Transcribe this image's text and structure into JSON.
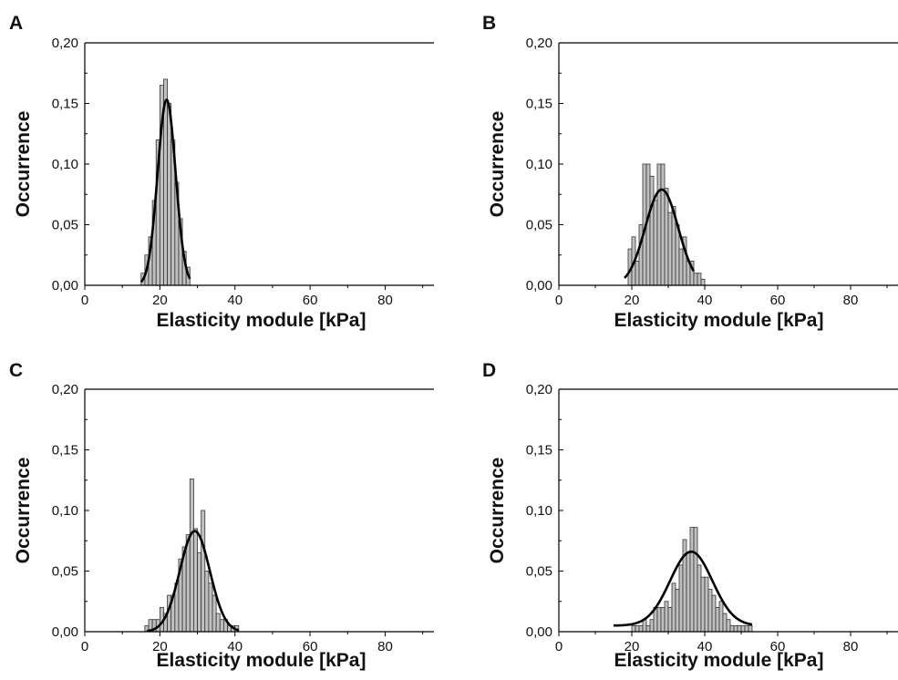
{
  "chart_data": [
    {
      "panel": "A",
      "type": "bar",
      "xlabel": "Elasticity module [kPa]",
      "ylabel": "Occurrence",
      "xlim": [
        0,
        93
      ],
      "ylim": [
        0,
        0.2
      ],
      "xticks": [
        {
          "v": 0,
          "t": "0"
        },
        {
          "v": 20,
          "t": "20"
        },
        {
          "v": 40,
          "t": "40"
        },
        {
          "v": 60,
          "t": "60"
        },
        {
          "v": 80,
          "t": "80"
        }
      ],
      "yticks": [
        {
          "v": 0,
          "t": "0,00"
        },
        {
          "v": 0.05,
          "t": "0,05"
        },
        {
          "v": 0.1,
          "t": "0,10"
        },
        {
          "v": 0.15,
          "t": "0,15"
        },
        {
          "v": 0.2,
          "t": "0,20"
        }
      ],
      "bin_width": 1,
      "bins": [
        {
          "x": 15.5,
          "y": 0.01
        },
        {
          "x": 16.5,
          "y": 0.025
        },
        {
          "x": 17.5,
          "y": 0.04
        },
        {
          "x": 18.5,
          "y": 0.07
        },
        {
          "x": 19.5,
          "y": 0.12
        },
        {
          "x": 20.5,
          "y": 0.165
        },
        {
          "x": 21.5,
          "y": 0.17
        },
        {
          "x": 22.5,
          "y": 0.15
        },
        {
          "x": 23.5,
          "y": 0.12
        },
        {
          "x": 24.5,
          "y": 0.085
        },
        {
          "x": 25.5,
          "y": 0.055
        },
        {
          "x": 26.5,
          "y": 0.028
        },
        {
          "x": 27.5,
          "y": 0.015
        }
      ],
      "fit": {
        "type": "gaussian",
        "mu": 21.8,
        "sigma": 2.4,
        "amp": 0.153,
        "x_range": [
          15,
          28
        ]
      }
    },
    {
      "panel": "B",
      "type": "bar",
      "xlabel": "Elasticity module [kPa]",
      "ylabel": "Occurrence",
      "xlim": [
        0,
        93
      ],
      "ylim": [
        0,
        0.2
      ],
      "xticks": [
        {
          "v": 0,
          "t": "0"
        },
        {
          "v": 20,
          "t": "20"
        },
        {
          "v": 40,
          "t": "40"
        },
        {
          "v": 60,
          "t": "60"
        },
        {
          "v": 80,
          "t": "80"
        }
      ],
      "yticks": [
        {
          "v": 0,
          "t": "0,00"
        },
        {
          "v": 0.05,
          "t": "0,05"
        },
        {
          "v": 0.1,
          "t": "0,10"
        },
        {
          "v": 0.15,
          "t": "0,15"
        },
        {
          "v": 0.2,
          "t": "0,20"
        }
      ],
      "bin_width": 1,
      "bins": [
        {
          "x": 19.5,
          "y": 0.03
        },
        {
          "x": 20.5,
          "y": 0.04
        },
        {
          "x": 21.5,
          "y": 0.02
        },
        {
          "x": 22.5,
          "y": 0.05
        },
        {
          "x": 23.5,
          "y": 0.1
        },
        {
          "x": 24.5,
          "y": 0.1
        },
        {
          "x": 25.5,
          "y": 0.09
        },
        {
          "x": 26.5,
          "y": 0.07
        },
        {
          "x": 27.5,
          "y": 0.1
        },
        {
          "x": 28.5,
          "y": 0.1
        },
        {
          "x": 29.5,
          "y": 0.08
        },
        {
          "x": 30.5,
          "y": 0.06
        },
        {
          "x": 31.5,
          "y": 0.065
        },
        {
          "x": 32.5,
          "y": 0.05
        },
        {
          "x": 33.5,
          "y": 0.03
        },
        {
          "x": 34.5,
          "y": 0.04
        },
        {
          "x": 35.5,
          "y": 0.02
        },
        {
          "x": 36.5,
          "y": 0.02
        },
        {
          "x": 37.5,
          "y": 0.01
        },
        {
          "x": 38.5,
          "y": 0.01
        },
        {
          "x": 39.5,
          "y": 0.005
        }
      ],
      "fit": {
        "type": "gaussian",
        "mu": 28.2,
        "sigma": 4.5,
        "amp": 0.079,
        "x_range": [
          18,
          37
        ]
      }
    },
    {
      "panel": "C",
      "type": "bar",
      "xlabel": "Elasticity module [kPa]",
      "ylabel": "Occurrence",
      "xlim": [
        0,
        93
      ],
      "ylim": [
        0,
        0.2
      ],
      "xticks": [
        {
          "v": 0,
          "t": "0"
        },
        {
          "v": 20,
          "t": "20"
        },
        {
          "v": 40,
          "t": "40"
        },
        {
          "v": 60,
          "t": "60"
        },
        {
          "v": 80,
          "t": "80"
        }
      ],
      "yticks": [
        {
          "v": 0,
          "t": "0,00"
        },
        {
          "v": 0.05,
          "t": "0,05"
        },
        {
          "v": 0.1,
          "t": "0,10"
        },
        {
          "v": 0.15,
          "t": "0,15"
        },
        {
          "v": 0.2,
          "t": "0,20"
        }
      ],
      "bin_width": 1,
      "bins": [
        {
          "x": 16.5,
          "y": 0.005
        },
        {
          "x": 17.5,
          "y": 0.01
        },
        {
          "x": 18.5,
          "y": 0.01
        },
        {
          "x": 19.5,
          "y": 0.01
        },
        {
          "x": 20.5,
          "y": 0.02
        },
        {
          "x": 21.5,
          "y": 0.015
        },
        {
          "x": 22.5,
          "y": 0.03
        },
        {
          "x": 23.5,
          "y": 0.03
        },
        {
          "x": 24.5,
          "y": 0.04
        },
        {
          "x": 25.5,
          "y": 0.06
        },
        {
          "x": 26.5,
          "y": 0.07
        },
        {
          "x": 27.5,
          "y": 0.08
        },
        {
          "x": 28.5,
          "y": 0.126
        },
        {
          "x": 29.5,
          "y": 0.085
        },
        {
          "x": 30.5,
          "y": 0.065
        },
        {
          "x": 31.5,
          "y": 0.1
        },
        {
          "x": 32.5,
          "y": 0.05
        },
        {
          "x": 33.5,
          "y": 0.04
        },
        {
          "x": 34.5,
          "y": 0.03
        },
        {
          "x": 35.5,
          "y": 0.015
        },
        {
          "x": 36.5,
          "y": 0.01
        },
        {
          "x": 37.5,
          "y": 0.01
        },
        {
          "x": 38.5,
          "y": 0.005
        },
        {
          "x": 39.5,
          "y": 0.005
        },
        {
          "x": 40.5,
          "y": 0.005
        }
      ],
      "fit": {
        "type": "gaussian",
        "mu": 29.3,
        "sigma": 4.0,
        "amp": 0.083,
        "x_range": [
          16.5,
          41
        ]
      }
    },
    {
      "panel": "D",
      "type": "bar",
      "xlabel": "Elasticity module [kPa]",
      "ylabel": "Occurrence",
      "xlim": [
        0,
        93
      ],
      "ylim": [
        0,
        0.2
      ],
      "xticks": [
        {
          "v": 0,
          "t": "0"
        },
        {
          "v": 20,
          "t": "20"
        },
        {
          "v": 40,
          "t": "40"
        },
        {
          "v": 60,
          "t": "60"
        },
        {
          "v": 80,
          "t": "80"
        }
      ],
      "yticks": [
        {
          "v": 0,
          "t": "0,00"
        },
        {
          "v": 0.05,
          "t": "0,05"
        },
        {
          "v": 0.1,
          "t": "0,10"
        },
        {
          "v": 0.15,
          "t": "0,15"
        },
        {
          "v": 0.2,
          "t": "0,20"
        }
      ],
      "bin_width": 1,
      "bins": [
        {
          "x": 20.5,
          "y": 0.005
        },
        {
          "x": 21.5,
          "y": 0.005
        },
        {
          "x": 22.5,
          "y": 0.005
        },
        {
          "x": 23.5,
          "y": 0.01
        },
        {
          "x": 24.5,
          "y": 0.005
        },
        {
          "x": 25.5,
          "y": 0.01
        },
        {
          "x": 26.5,
          "y": 0.02
        },
        {
          "x": 27.5,
          "y": 0.02
        },
        {
          "x": 28.5,
          "y": 0.02
        },
        {
          "x": 29.5,
          "y": 0.025
        },
        {
          "x": 30.5,
          "y": 0.02
        },
        {
          "x": 31.5,
          "y": 0.04
        },
        {
          "x": 32.5,
          "y": 0.035
        },
        {
          "x": 33.5,
          "y": 0.055
        },
        {
          "x": 34.5,
          "y": 0.076
        },
        {
          "x": 35.5,
          "y": 0.065
        },
        {
          "x": 36.5,
          "y": 0.086
        },
        {
          "x": 37.5,
          "y": 0.086
        },
        {
          "x": 38.5,
          "y": 0.055
        },
        {
          "x": 39.5,
          "y": 0.045
        },
        {
          "x": 40.5,
          "y": 0.045
        },
        {
          "x": 41.5,
          "y": 0.035
        },
        {
          "x": 42.5,
          "y": 0.03
        },
        {
          "x": 43.5,
          "y": 0.02
        },
        {
          "x": 44.5,
          "y": 0.025
        },
        {
          "x": 45.5,
          "y": 0.015
        },
        {
          "x": 46.5,
          "y": 0.01
        },
        {
          "x": 47.5,
          "y": 0.005
        },
        {
          "x": 48.5,
          "y": 0.005
        },
        {
          "x": 49.5,
          "y": 0.005
        },
        {
          "x": 50.5,
          "y": 0.005
        },
        {
          "x": 51.5,
          "y": 0.005
        },
        {
          "x": 52.5,
          "y": 0.005
        }
      ],
      "fit": {
        "type": "gaussian",
        "mu": 36.3,
        "sigma": 5.8,
        "amp": 0.061,
        "offset": 0.005,
        "x_range": [
          15,
          53
        ]
      }
    }
  ],
  "style": {
    "bar_fill": "#c0c0c0",
    "bar_stroke": "#333333",
    "fit_color": "#000000",
    "axis_color": "#000000"
  }
}
